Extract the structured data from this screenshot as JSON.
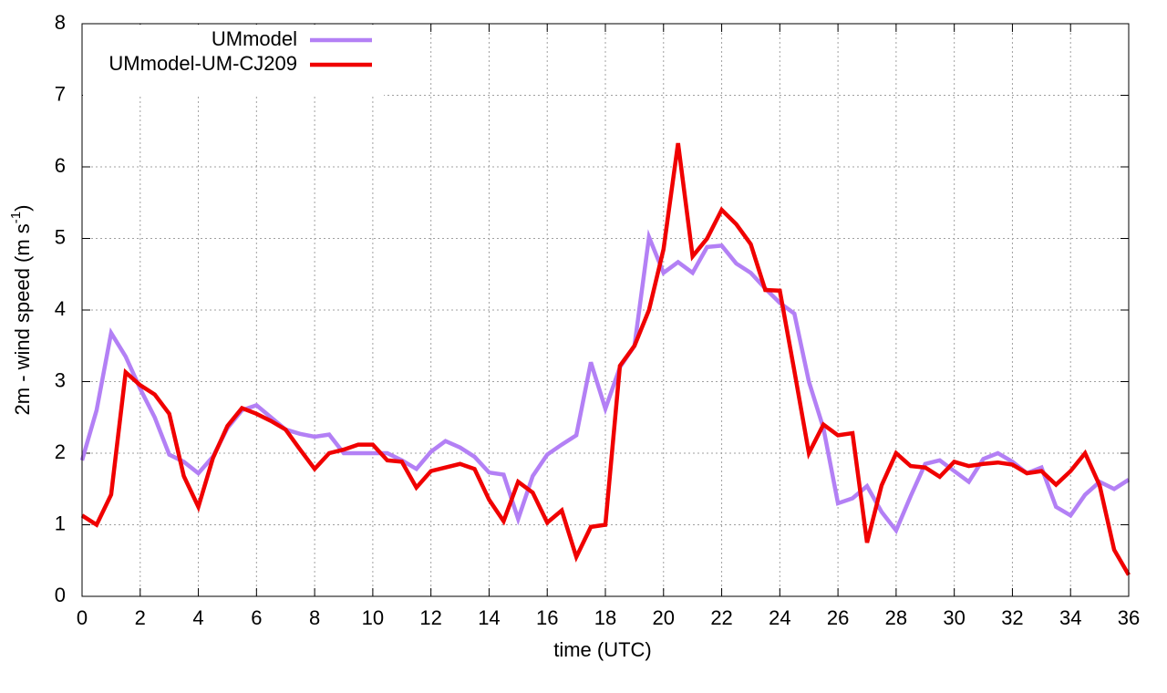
{
  "chart_data": {
    "type": "line",
    "x_label": "time (UTC)",
    "y_label": {
      "main": "2m - wind speed  (m s",
      "sup": "-1",
      "end": ")"
    },
    "x": [
      0,
      0.5,
      1,
      1.5,
      2,
      2.5,
      3,
      3.5,
      4,
      4.5,
      5,
      5.5,
      6,
      6.5,
      7,
      7.5,
      8,
      8.5,
      9,
      9.5,
      10,
      10.5,
      11,
      11.5,
      12,
      12.5,
      13,
      13.5,
      14,
      14.5,
      15,
      15.5,
      16,
      16.5,
      17,
      17.5,
      18,
      18.5,
      19,
      19.5,
      20,
      20.5,
      21,
      21.5,
      22,
      22.5,
      23,
      23.5,
      24,
      24.5,
      25,
      25.5,
      26,
      26.5,
      27,
      27.5,
      28,
      28.5,
      29,
      29.5,
      30,
      30.5,
      31,
      31.5,
      32,
      32.5,
      33,
      33.5,
      34,
      34.5,
      35,
      35.5,
      36
    ],
    "series": [
      {
        "name": "UMmodel",
        "color": "#b380f5",
        "values": [
          1.9,
          2.6,
          3.68,
          3.35,
          2.9,
          2.5,
          1.98,
          1.88,
          1.72,
          1.95,
          2.35,
          2.6,
          2.67,
          2.5,
          2.33,
          2.27,
          2.23,
          2.26,
          2.0,
          2.0,
          2.0,
          2.0,
          1.9,
          1.78,
          2.02,
          2.17,
          2.08,
          1.95,
          1.73,
          1.7,
          1.08,
          1.68,
          1.98,
          2.12,
          2.25,
          3.27,
          2.62,
          3.2,
          3.5,
          5.02,
          4.52,
          4.67,
          4.52,
          4.88,
          4.9,
          4.65,
          4.52,
          4.3,
          4.1,
          3.95,
          3.0,
          2.35,
          1.3,
          1.37,
          1.54,
          1.18,
          0.92,
          1.4,
          1.85,
          1.9,
          1.75,
          1.6,
          1.92,
          2.0,
          1.88,
          1.72,
          1.8,
          1.25,
          1.13,
          1.42,
          1.6,
          1.5,
          1.63
        ]
      },
      {
        "name": "UMmodel-UM-CJ209",
        "color": "#f00000",
        "values": [
          1.13,
          1.0,
          1.42,
          3.13,
          2.95,
          2.82,
          2.55,
          1.68,
          1.25,
          1.93,
          2.38,
          2.63,
          2.55,
          2.45,
          2.33,
          2.05,
          1.78,
          2.0,
          2.05,
          2.12,
          2.12,
          1.9,
          1.88,
          1.52,
          1.75,
          1.8,
          1.85,
          1.78,
          1.35,
          1.05,
          1.6,
          1.45,
          1.03,
          1.2,
          0.55,
          0.97,
          1.0,
          3.22,
          3.5,
          4.0,
          4.85,
          6.33,
          4.75,
          5.0,
          5.4,
          5.2,
          4.92,
          4.28,
          4.27,
          3.15,
          2.0,
          2.4,
          2.25,
          2.28,
          0.75,
          1.55,
          2.0,
          1.82,
          1.8,
          1.67,
          1.88,
          1.82,
          1.85,
          1.87,
          1.84,
          1.72,
          1.75,
          1.56,
          1.75,
          2.0,
          1.55,
          0.65,
          0.3
        ]
      }
    ],
    "xlim": [
      0,
      36
    ],
    "xticks": [
      0,
      2,
      4,
      6,
      8,
      10,
      12,
      14,
      16,
      18,
      20,
      22,
      24,
      26,
      28,
      30,
      32,
      34,
      36
    ],
    "ylim": [
      0,
      8
    ],
    "yticks": [
      0,
      1,
      2,
      3,
      4,
      5,
      6,
      7,
      8
    ],
    "grid": true,
    "legend": "top-left"
  }
}
